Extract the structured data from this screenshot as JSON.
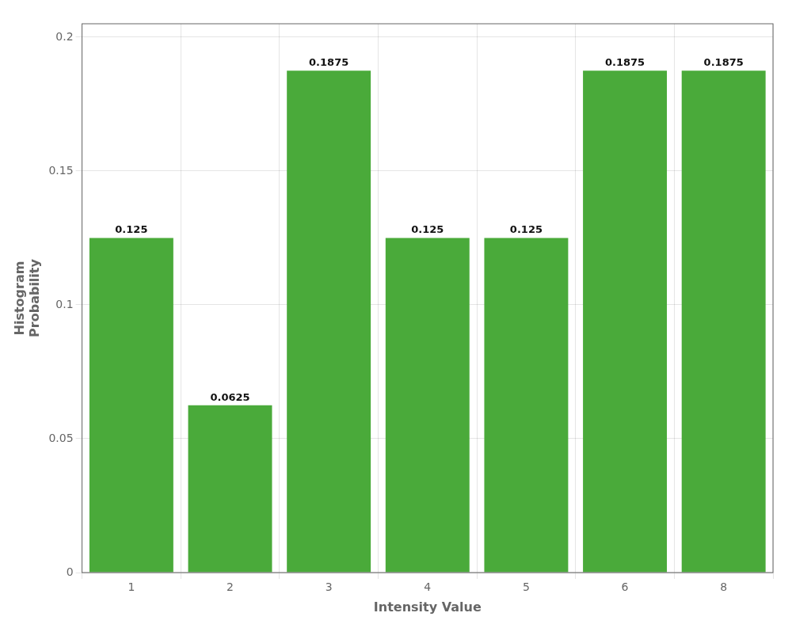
{
  "chart_data": {
    "type": "bar",
    "categories": [
      "1",
      "2",
      "3",
      "4",
      "5",
      "6",
      "8"
    ],
    "values": [
      0.125,
      0.0625,
      0.1875,
      0.125,
      0.125,
      0.1875,
      0.1875
    ],
    "color": "#4aaa3a",
    "xlabel": "Intensity Value",
    "ylabel": "Histogram\nProbability",
    "ylim": [
      0,
      0.205
    ],
    "yticks": [
      0,
      0.05,
      0.1,
      0.15,
      0.2
    ],
    "grid": true,
    "data_labels": true
  }
}
